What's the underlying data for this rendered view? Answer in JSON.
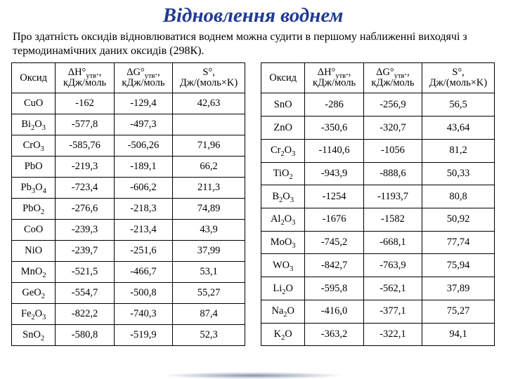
{
  "page": {
    "title": "Відновлення воднем",
    "intro": "Про здатність оксидів відновлюватися воднем можна судити в першому наближенні виходячі з термодинамічних даних оксидів (298К).",
    "title_color": "#1f3a93",
    "title_fontsize_pt": 22,
    "intro_fontsize_pt": 12,
    "body_fontsize_pt": 11,
    "border_color": "#000000",
    "background_color": "#ffffff"
  },
  "columns": {
    "c1": "Оксид",
    "c2_line1": "ΔH°",
    "c2_sub": "утв",
    "c2_line2": "кДж/моль",
    "c3_line1": "ΔG°",
    "c3_sub": "утв",
    "c3_line2": "кДж/моль",
    "c4_line1": "S°,",
    "c4_line2": "Дж/(моль×K)"
  },
  "tables": {
    "left": [
      {
        "oxide_html": "CuO",
        "dH": "-162",
        "dG": "-129,4",
        "S": "42,63"
      },
      {
        "oxide_html": "Bi<sub>2</sub>O<sub>3</sub>",
        "dH": "-577,8",
        "dG": "-497,3",
        "S": ""
      },
      {
        "oxide_html": "CrO<sub>3</sub>",
        "dH": "-585,76",
        "dG": "-506,26",
        "S": "71,96"
      },
      {
        "oxide_html": "PbO",
        "dH": "-219,3",
        "dG": "-189,1",
        "S": "66,2"
      },
      {
        "oxide_html": "Pb<sub>3</sub>O<sub>4</sub>",
        "dH": "-723,4",
        "dG": "-606,2",
        "S": "211,3"
      },
      {
        "oxide_html": "PbO<sub>2</sub>",
        "dH": "-276,6",
        "dG": "-218,3",
        "S": "74,89"
      },
      {
        "oxide_html": "CoO",
        "dH": "-239,3",
        "dG": "-213,4",
        "S": "43,9"
      },
      {
        "oxide_html": "NiO",
        "dH": "-239,7",
        "dG": "-251,6",
        "S": "37,99"
      },
      {
        "oxide_html": "MnO<sub>2</sub>",
        "dH": "-521,5",
        "dG": "-466,7",
        "S": "53,1"
      },
      {
        "oxide_html": "GeO<sub>2</sub>",
        "dH": "-554,7",
        "dG": "-500,8",
        "S": "55,27"
      },
      {
        "oxide_html": "Fe<sub>2</sub>O<sub>3</sub>",
        "dH": "-822,2",
        "dG": "-740,3",
        "S": "87,4"
      },
      {
        "oxide_html": "SnO<sub>2</sub>",
        "dH": "-580,8",
        "dG": "-519,9",
        "S": "52,3"
      }
    ],
    "right": [
      {
        "oxide_html": "SnO",
        "dH": "-286",
        "dG": "-256,9",
        "S": "56,5"
      },
      {
        "oxide_html": "ZnO",
        "dH": "-350,6",
        "dG": "-320,7",
        "S": "43,64"
      },
      {
        "oxide_html": "Cr<sub>2</sub>O<sub>3</sub>",
        "dH": "-1140,6",
        "dG": "-1056",
        "S": "81,2"
      },
      {
        "oxide_html": "TiO<sub>2</sub>",
        "dH": "-943,9",
        "dG": "-888,6",
        "S": "50,33"
      },
      {
        "oxide_html": "B<sub>2</sub>O<sub>3</sub>",
        "dH": "-1254",
        "dG": "-1193,7",
        "S": "80,8"
      },
      {
        "oxide_html": "Al<sub>2</sub>O<sub>3</sub>",
        "dH": "-1676",
        "dG": "-1582",
        "S": "50,92"
      },
      {
        "oxide_html": "MoO<sub>3</sub>",
        "dH": "-745,2",
        "dG": "-668,1",
        "S": "77,74"
      },
      {
        "oxide_html": "WO<sub>3</sub>",
        "dH": "-842,7",
        "dG": "-763,9",
        "S": "75,94"
      },
      {
        "oxide_html": "Li<sub>2</sub>O",
        "dH": "-595,8",
        "dG": "-562,1",
        "S": "37,89"
      },
      {
        "oxide_html": "Na<sub>2</sub>O",
        "dH": "-416,0",
        "dG": "-377,1",
        "S": "75,27"
      },
      {
        "oxide_html": "K<sub>2</sub>O",
        "dH": "-363,2",
        "dG": "-322,1",
        "S": "94,1"
      }
    ]
  }
}
